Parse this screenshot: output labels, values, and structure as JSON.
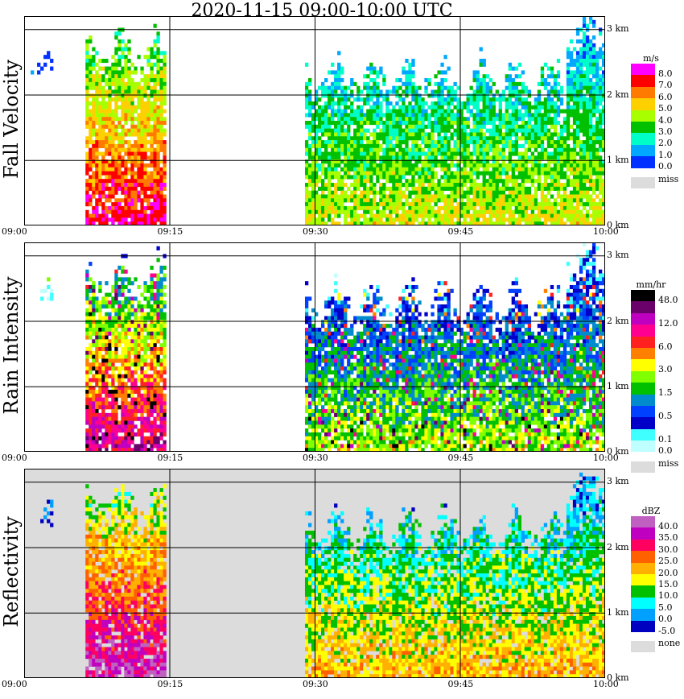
{
  "title": "2020-11-15   09:00-10:00 UTC",
  "time_ticks": [
    "09:00",
    "09:15",
    "09:30",
    "09:45",
    "10:00"
  ],
  "height_ticks": [
    "0 km",
    "1 km",
    "2 km",
    "3 km"
  ],
  "panels": [
    {
      "ylabel": "Fall Velocity",
      "unit": "m/s",
      "legend_values": [
        "8.0",
        "7.0",
        "6.0",
        "5.0",
        "4.0",
        "3.0",
        "2.0",
        "1.0",
        "0.0"
      ],
      "legend_colors": [
        "#ff00ff",
        "#ff0000",
        "#ff7a00",
        "#ffd000",
        "#a8ff00",
        "#00c000",
        "#00ffc8",
        "#00a8ff",
        "#0030ff"
      ],
      "missing_label": "miss",
      "background": "#ffffff"
    },
    {
      "ylabel": "Rain Intensity",
      "unit": "mm/hr",
      "legend_values": [
        "48.0",
        "",
        "12.0",
        "",
        "6.0",
        "",
        "3.0",
        "",
        "1.5",
        "",
        "0.5",
        "",
        "0.1",
        "0.0"
      ],
      "legend_colors": [
        "#000000",
        "#6a006a",
        "#c000c0",
        "#ff0090",
        "#ff2020",
        "#ff8000",
        "#ffff00",
        "#80ff00",
        "#00c000",
        "#008ccc",
        "#0040ff",
        "#0000c8",
        "#40ffff",
        "#c0ffff"
      ],
      "missing_label": "miss",
      "background": "#ffffff"
    },
    {
      "ylabel": "Reflectivity",
      "unit": "dBZ",
      "legend_values": [
        "40.0",
        "35.0",
        "30.0",
        "25.0",
        "20.0",
        "15.0",
        "10.0",
        "5.0",
        "0.0",
        "-5.0"
      ],
      "legend_colors": [
        "#c060c0",
        "#c000c0",
        "#ff0060",
        "#ff6000",
        "#ffb000",
        "#ffff00",
        "#00c000",
        "#00ffff",
        "#00a0ff",
        "#0000c0"
      ],
      "missing_label": "none",
      "background": "#dcdcdc"
    }
  ],
  "chart_data": {
    "type": "heatmap",
    "title": "2020-11-15   09:00-10:00 UTC",
    "x_axis": {
      "labels": [
        "09:00",
        "09:15",
        "09:30",
        "09:45",
        "10:00"
      ],
      "range": [
        0,
        60
      ],
      "unit": "minutes after 09:00"
    },
    "y_axis": {
      "labels": [
        "0 km",
        "1 km",
        "2 km",
        "3 km"
      ],
      "range": [
        0,
        3.2
      ],
      "unit": "km"
    },
    "grid": true,
    "panels": [
      "Fall Velocity",
      "Rain Intensity",
      "Reflectivity"
    ]
  }
}
